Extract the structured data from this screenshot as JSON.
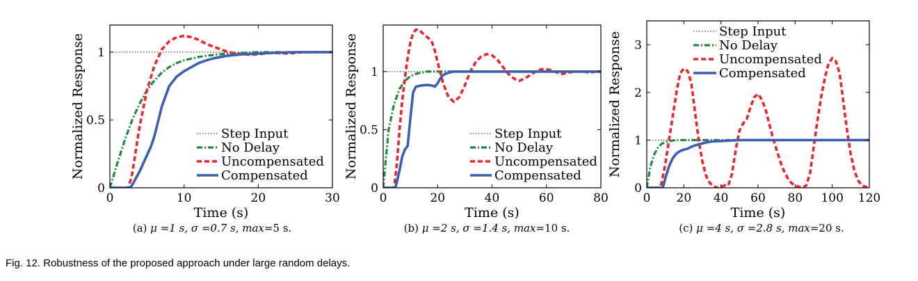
{
  "figure_caption": "Fig. 12. Robustness of the proposed approach under large random delays.",
  "panels": [
    {
      "caption_prefix": "(a)",
      "caption_mu": "μ =1 s, ",
      "caption_sigma": "σ =0.7 s, ",
      "caption_max_label": "max",
      "caption_max_value": "=5 s."
    },
    {
      "caption_prefix": "(b)",
      "caption_mu": "μ =2 s, ",
      "caption_sigma": "σ =1.4 s, ",
      "caption_max_label": "max",
      "caption_max_value": "=10 s."
    },
    {
      "caption_prefix": "(c)",
      "caption_mu": "μ =4 s, ",
      "caption_sigma": "σ =2.8 s, ",
      "caption_max_label": "max",
      "caption_max_value": "=20 s."
    }
  ],
  "colors": {
    "step": "#666666",
    "no_delay": "#1e8a3a",
    "uncompensated": "#e8262e",
    "compensated": "#3a5fb0"
  },
  "chart_data": [
    {
      "type": "line",
      "xlabel": "Time (s)",
      "ylabel": "Normalized Response",
      "xlim": [
        0,
        30
      ],
      "ylim": [
        0,
        1.2
      ],
      "xticks": [
        0,
        10,
        20,
        30
      ],
      "yticks": [
        0,
        0.5,
        1
      ],
      "ytick_labels": [
        "0",
        "0.5",
        "1"
      ],
      "legend_position": "bottom-right",
      "series": [
        {
          "name": "Step Input",
          "style": "step",
          "x": [
            0,
            30
          ],
          "y": [
            1,
            1
          ]
        },
        {
          "name": "No Delay",
          "style": "no_delay",
          "x": [
            0,
            1,
            2,
            3,
            4,
            5,
            6,
            7,
            8,
            9,
            10,
            12,
            14,
            16,
            18,
            20,
            22,
            25,
            30
          ],
          "y": [
            0,
            0.18,
            0.35,
            0.5,
            0.62,
            0.72,
            0.79,
            0.85,
            0.89,
            0.92,
            0.94,
            0.965,
            0.98,
            0.99,
            0.995,
            1,
            1,
            1,
            1
          ]
        },
        {
          "name": "Uncompensated",
          "style": "uncompensated",
          "x": [
            0,
            2.5,
            3,
            4,
            5,
            6,
            7,
            8,
            9,
            10,
            11,
            12,
            13,
            14,
            15,
            16,
            17,
            18,
            19,
            20,
            21,
            22,
            24,
            26,
            28,
            30
          ],
          "y": [
            0,
            0,
            0.1,
            0.45,
            0.72,
            0.9,
            1.02,
            1.08,
            1.11,
            1.12,
            1.11,
            1.09,
            1.06,
            1.04,
            1.02,
            1.0,
            0.99,
            0.985,
            0.98,
            0.985,
            0.99,
            0.995,
            0.99,
            1.0,
            1.0,
            1.0
          ]
        },
        {
          "name": "Compensated",
          "style": "compensated",
          "x": [
            0,
            2.7,
            3,
            4,
            5,
            5.5,
            6,
            7,
            8,
            9,
            10,
            11,
            12,
            13,
            14,
            15,
            16,
            18,
            20,
            22,
            25,
            30
          ],
          "y": [
            0,
            0,
            0.02,
            0.12,
            0.24,
            0.3,
            0.38,
            0.6,
            0.75,
            0.82,
            0.86,
            0.89,
            0.92,
            0.94,
            0.955,
            0.965,
            0.975,
            0.985,
            0.99,
            0.995,
            1.0,
            1.0
          ]
        }
      ]
    },
    {
      "type": "line",
      "xlabel": "Time (s)",
      "ylabel": "Normalized Response",
      "xlim": [
        0,
        80
      ],
      "ylim": [
        0,
        1.4
      ],
      "xticks": [
        0,
        20,
        40,
        60,
        80
      ],
      "yticks": [
        0,
        0.5,
        1
      ],
      "ytick_labels": [
        "0",
        "0.5",
        "1"
      ],
      "legend_position": "bottom-right",
      "series": [
        {
          "name": "Step Input",
          "style": "step",
          "x": [
            0,
            80
          ],
          "y": [
            1,
            1
          ]
        },
        {
          "name": "No Delay",
          "style": "no_delay",
          "x": [
            0,
            2,
            4,
            6,
            8,
            10,
            12,
            14,
            16,
            18,
            20,
            80
          ],
          "y": [
            0,
            0.5,
            0.72,
            0.85,
            0.92,
            0.96,
            0.98,
            0.99,
            1,
            1,
            1,
            1
          ]
        },
        {
          "name": "Uncompensated",
          "style": "uncompensated",
          "x": [
            0,
            4,
            5,
            6,
            7,
            8,
            9,
            10,
            11,
            12,
            13,
            14,
            15,
            16,
            17,
            18,
            19,
            20,
            22,
            24,
            26,
            28,
            30,
            32,
            34,
            36,
            38,
            40,
            42,
            44,
            46,
            48,
            50,
            52,
            54,
            56,
            58,
            60,
            62,
            64,
            66,
            68,
            70,
            72,
            74,
            76,
            78,
            80
          ],
          "y": [
            0,
            0,
            0.2,
            0.5,
            0.75,
            0.95,
            1.12,
            1.25,
            1.33,
            1.36,
            1.36,
            1.34,
            1.32,
            1.3,
            1.28,
            1.25,
            1.18,
            1.08,
            0.9,
            0.78,
            0.74,
            0.78,
            0.88,
            1.0,
            1.08,
            1.13,
            1.15,
            1.14,
            1.1,
            1.04,
            0.98,
            0.94,
            0.92,
            0.94,
            0.97,
            1.0,
            1.02,
            1.02,
            1.01,
            0.99,
            0.98,
            0.99,
            1.0,
            1.0,
            1.0,
            0.99,
            1.0,
            1.0
          ]
        },
        {
          "name": "Compensated",
          "style": "compensated",
          "x": [
            0,
            4.5,
            5,
            6,
            7,
            8,
            9,
            10,
            11,
            12,
            14,
            16,
            18,
            19,
            20,
            21,
            22,
            24,
            26,
            28,
            30,
            40,
            80
          ],
          "y": [
            0,
            0,
            0.05,
            0.15,
            0.27,
            0.33,
            0.36,
            0.6,
            0.82,
            0.87,
            0.88,
            0.885,
            0.88,
            0.87,
            0.9,
            0.94,
            0.97,
            0.99,
            1.0,
            1.0,
            1.0,
            1.0,
            1.0
          ]
        }
      ]
    },
    {
      "type": "line",
      "xlabel": "Time (s)",
      "ylabel": "Normalized Response",
      "xlim": [
        0,
        120
      ],
      "ylim": [
        0,
        3.5
      ],
      "xticks": [
        0,
        20,
        40,
        60,
        80,
        100,
        120
      ],
      "yticks": [
        0,
        1,
        2,
        3
      ],
      "ytick_labels": [
        "0",
        "1",
        "2",
        "3"
      ],
      "legend_position": "top-center",
      "series": [
        {
          "name": "Step Input",
          "style": "step",
          "x": [
            0,
            120
          ],
          "y": [
            1,
            1
          ]
        },
        {
          "name": "No Delay",
          "style": "no_delay",
          "x": [
            0,
            2,
            4,
            6,
            8,
            10,
            12,
            14,
            16,
            18,
            20,
            120
          ],
          "y": [
            0,
            0.45,
            0.7,
            0.84,
            0.92,
            0.96,
            0.98,
            0.99,
            1,
            1,
            1,
            1
          ]
        },
        {
          "name": "Uncompensated",
          "style": "uncompensated",
          "x": [
            0,
            7,
            8,
            10,
            12,
            14,
            16,
            18,
            20,
            22,
            24,
            26,
            28,
            30,
            32,
            34,
            36,
            38,
            40,
            42,
            44,
            46,
            48,
            50,
            52,
            54,
            56,
            58,
            60,
            62,
            64,
            66,
            68,
            70,
            72,
            74,
            76,
            78,
            80,
            82,
            84,
            86,
            88,
            90,
            92,
            94,
            96,
            98,
            100,
            102,
            104,
            106,
            108,
            110,
            112,
            114,
            116,
            118,
            120
          ],
          "y": [
            0,
            0,
            0.1,
            0.5,
            1.0,
            1.5,
            2.0,
            2.4,
            2.5,
            2.45,
            2.2,
            1.6,
            1.0,
            0.55,
            0.25,
            0.1,
            0.03,
            0.0,
            0.02,
            0.05,
            0.05,
            0.3,
            0.8,
            1.2,
            1.35,
            1.45,
            1.7,
            1.9,
            1.97,
            1.85,
            1.65,
            1.35,
            1.05,
            0.8,
            0.55,
            0.35,
            0.2,
            0.1,
            0.05,
            0.02,
            0.0,
            0.05,
            0.3,
            0.85,
            1.4,
            1.9,
            2.3,
            2.6,
            2.72,
            2.65,
            2.4,
            1.8,
            1.2,
            0.7,
            0.35,
            0.15,
            0.05,
            0.02,
            0.0
          ]
        },
        {
          "name": "Compensated",
          "style": "compensated",
          "x": [
            0,
            8.5,
            9,
            10,
            12,
            14,
            16,
            18,
            20,
            22,
            24,
            26,
            28,
            30,
            32,
            35,
            40,
            45,
            50,
            60,
            70,
            80,
            90,
            100,
            110,
            120
          ],
          "y": [
            0,
            0,
            0.05,
            0.2,
            0.45,
            0.62,
            0.72,
            0.77,
            0.8,
            0.82,
            0.86,
            0.89,
            0.91,
            0.93,
            0.95,
            0.97,
            0.98,
            0.99,
            1.0,
            1.0,
            1.0,
            1.0,
            1.0,
            1.0,
            1.0,
            1.0
          ]
        }
      ]
    }
  ]
}
